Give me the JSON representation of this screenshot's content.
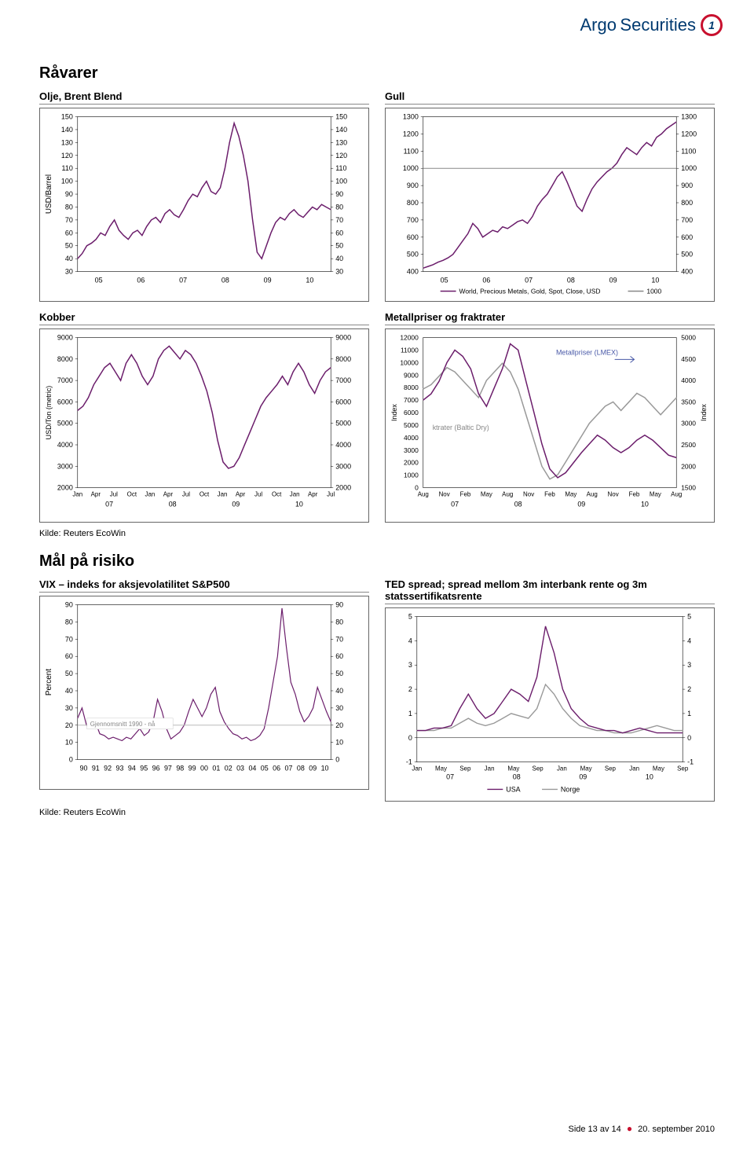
{
  "brand": {
    "part1": "Argo",
    "part2": "Securities"
  },
  "section1_title": "Råvarer",
  "section2_title": "Mål på risiko",
  "source_text": "Kilde: Reuters EcoWin",
  "footer": {
    "page": "Side 13 av 14",
    "date": "20. september 2010"
  },
  "charts": {
    "oil": {
      "title": "Olje, Brent Blend",
      "ylabel": "USD/Barrel",
      "ymin": 30,
      "ymax": 150,
      "ystep": 10,
      "xticks": [
        "05",
        "06",
        "07",
        "08",
        "09",
        "10"
      ],
      "line_color": "#6b1d6b",
      "data": [
        40,
        44,
        50,
        52,
        55,
        60,
        58,
        65,
        70,
        62,
        58,
        55,
        60,
        62,
        58,
        65,
        70,
        72,
        68,
        75,
        78,
        74,
        72,
        78,
        85,
        90,
        88,
        95,
        100,
        92,
        90,
        95,
        110,
        130,
        145,
        135,
        120,
        100,
        70,
        45,
        40,
        50,
        60,
        68,
        72,
        70,
        75,
        78,
        74,
        72,
        76,
        80,
        78,
        82,
        80,
        78
      ]
    },
    "gold": {
      "title": "Gull",
      "ymin": 400,
      "ymax": 1300,
      "ystep": 100,
      "xticks": [
        "05",
        "06",
        "07",
        "08",
        "09",
        "10"
      ],
      "legend": [
        "World, Precious Metals, Gold, Spot, Close, USD",
        "1000"
      ],
      "line_color": "#6b1d6b",
      "ref_line": 1000,
      "data": [
        420,
        430,
        440,
        455,
        465,
        480,
        500,
        540,
        580,
        620,
        680,
        650,
        600,
        620,
        640,
        630,
        660,
        650,
        670,
        690,
        700,
        680,
        720,
        780,
        820,
        850,
        900,
        950,
        980,
        920,
        850,
        780,
        750,
        820,
        880,
        920,
        950,
        980,
        1000,
        1030,
        1080,
        1120,
        1100,
        1080,
        1120,
        1150,
        1130,
        1180,
        1200,
        1230,
        1250,
        1270
      ]
    },
    "copper": {
      "title": "Kobber",
      "ylabel": "USD/Ton (metric)",
      "ymin": 2000,
      "ymax": 9000,
      "ystep": 1000,
      "xticks_top": [
        "Jan",
        "Apr",
        "Jul",
        "Oct",
        "Jan",
        "Apr",
        "Jul",
        "Oct",
        "Jan",
        "Apr",
        "Jul",
        "Oct",
        "Jan",
        "Apr",
        "Jul"
      ],
      "xticks_bottom": [
        "07",
        "08",
        "09",
        "10"
      ],
      "line_color": "#6b1d6b",
      "data": [
        5600,
        5800,
        6200,
        6800,
        7200,
        7600,
        7800,
        7400,
        7000,
        7800,
        8200,
        7800,
        7200,
        6800,
        7200,
        8000,
        8400,
        8600,
        8300,
        8000,
        8400,
        8200,
        7800,
        7200,
        6500,
        5500,
        4200,
        3200,
        2900,
        3000,
        3400,
        4000,
        4600,
        5200,
        5800,
        6200,
        6500,
        6800,
        7200,
        6800,
        7400,
        7800,
        7400,
        6800,
        6400,
        7000,
        7400,
        7600
      ]
    },
    "metals": {
      "title": "Metallpriser og fraktrater",
      "ylabel_left": "Index",
      "ylabel_right": "Index",
      "y1min": 0,
      "y1max": 12000,
      "y1step": 1000,
      "y2min": 1500,
      "y2max": 5000,
      "y2step": 500,
      "xticks_top": [
        "Aug",
        "Nov",
        "Feb",
        "May",
        "Aug",
        "Nov",
        "Feb",
        "May",
        "Aug",
        "Nov",
        "Feb",
        "May",
        "Aug"
      ],
      "xticks_bottom": [
        "07",
        "08",
        "09",
        "10"
      ],
      "annot1": "Metallpriser (LMEX)",
      "annot2": "ktrater (Baltic Dry)",
      "line1_color": "#999999",
      "line2_color": "#6b1d6b",
      "data1": [
        3800,
        3900,
        4100,
        4300,
        4200,
        4000,
        3800,
        3600,
        4000,
        4200,
        4400,
        4200,
        3800,
        3200,
        2600,
        2000,
        1700,
        1800,
        2100,
        2400,
        2700,
        3000,
        3200,
        3400,
        3500,
        3300,
        3500,
        3700,
        3600,
        3400,
        3200,
        3400,
        3600
      ],
      "data2": [
        7000,
        7500,
        8500,
        10000,
        11000,
        10500,
        9500,
        7500,
        6500,
        8000,
        9500,
        11500,
        11000,
        8500,
        6000,
        3500,
        1500,
        800,
        1200,
        2000,
        2800,
        3500,
        4200,
        3800,
        3200,
        2800,
        3200,
        3800,
        4200,
        3800,
        3200,
        2600,
        2400
      ]
    },
    "vix": {
      "title": "VIX – indeks for aksjevolatilitet S&P500",
      "ylabel": "Percent",
      "ymin": 0,
      "ymax": 90,
      "ystep": 10,
      "xticks": [
        "90",
        "91",
        "92",
        "93",
        "94",
        "95",
        "96",
        "97",
        "98",
        "99",
        "00",
        "01",
        "02",
        "03",
        "04",
        "05",
        "06",
        "07",
        "08",
        "09",
        "10"
      ],
      "annot": "Gjennomsnitt 1990 - nå",
      "line_color": "#6b1d6b",
      "ref_color": "#bbbbbb",
      "ref_value": 20,
      "data": [
        24,
        30,
        20,
        18,
        22,
        15,
        14,
        12,
        13,
        12,
        11,
        13,
        12,
        15,
        18,
        14,
        16,
        22,
        35,
        28,
        18,
        12,
        14,
        16,
        20,
        28,
        35,
        30,
        25,
        30,
        38,
        42,
        28,
        22,
        18,
        15,
        14,
        12,
        13,
        11,
        12,
        14,
        18,
        30,
        45,
        60,
        88,
        65,
        45,
        38,
        28,
        22,
        25,
        30,
        42,
        35,
        28,
        22
      ]
    },
    "ted": {
      "title": "TED spread; spread mellom 3m interbank rente og 3m statssertifikatsrente",
      "ymin": -1,
      "ymax": 5,
      "ystep": 1,
      "xticks_top": [
        "Jan",
        "May",
        "Sep",
        "Jan",
        "May",
        "Sep",
        "Jan",
        "May",
        "Sep",
        "Jan",
        "May",
        "Sep"
      ],
      "xticks_bottom": [
        "07",
        "08",
        "09",
        "10"
      ],
      "legend": [
        "USA",
        "Norge"
      ],
      "line1_color": "#6b1d6b",
      "line2_color": "#999999",
      "data1": [
        0.3,
        0.3,
        0.4,
        0.4,
        0.5,
        1.2,
        1.8,
        1.2,
        0.8,
        1.0,
        1.5,
        2.0,
        1.8,
        1.5,
        2.5,
        4.6,
        3.5,
        2.0,
        1.2,
        0.8,
        0.5,
        0.4,
        0.3,
        0.3,
        0.2,
        0.3,
        0.4,
        0.3,
        0.2,
        0.2,
        0.2,
        0.2
      ],
      "data2": [
        0.3,
        0.3,
        0.3,
        0.4,
        0.4,
        0.6,
        0.8,
        0.6,
        0.5,
        0.6,
        0.8,
        1.0,
        0.9,
        0.8,
        1.2,
        2.2,
        1.8,
        1.2,
        0.8,
        0.5,
        0.4,
        0.3,
        0.3,
        0.2,
        0.2,
        0.2,
        0.3,
        0.4,
        0.5,
        0.4,
        0.3,
        0.3
      ]
    }
  }
}
